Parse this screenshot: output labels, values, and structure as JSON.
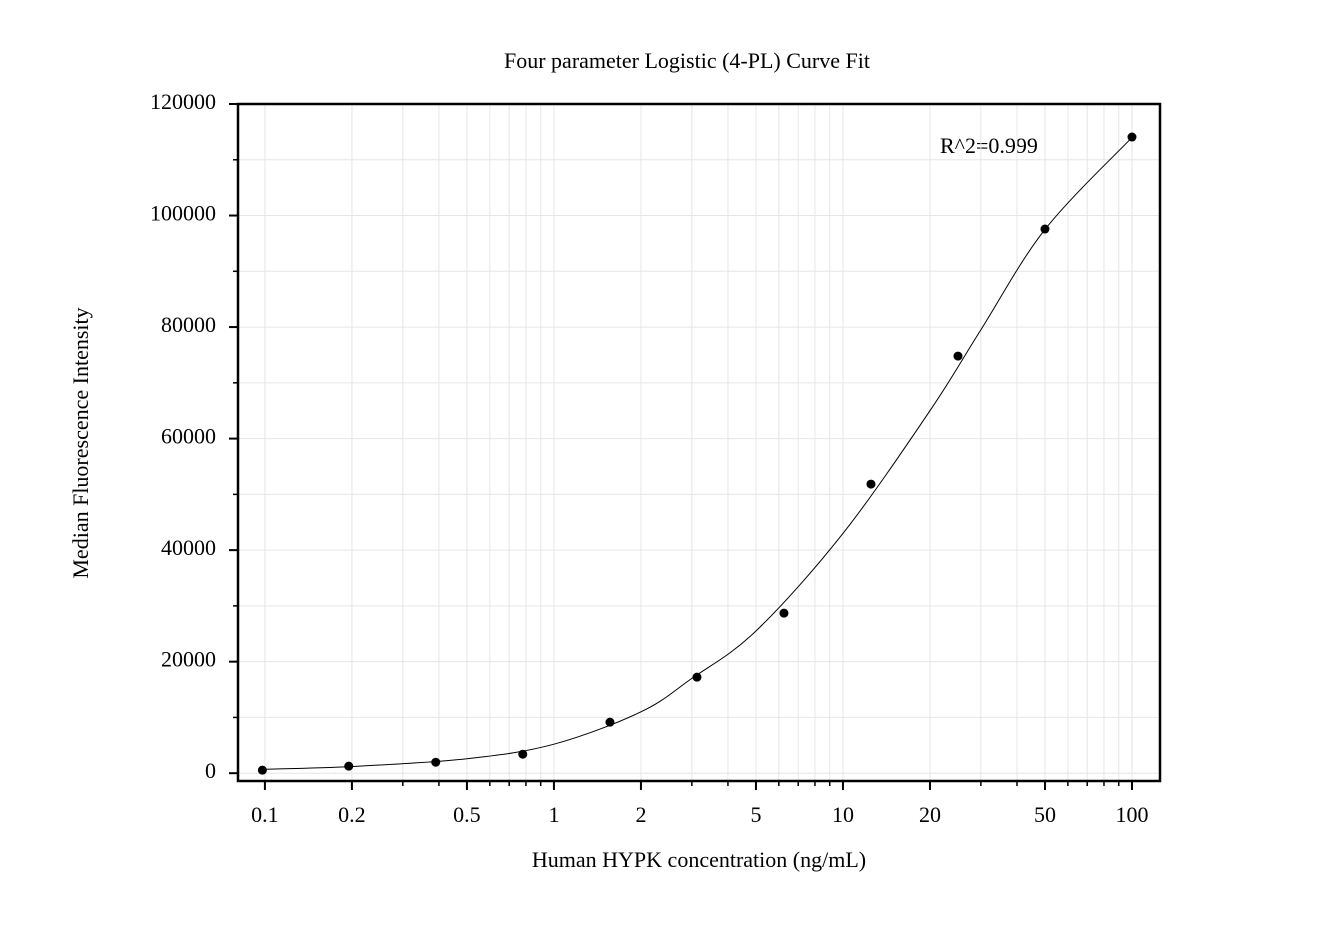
{
  "chart_data": {
    "type": "scatter",
    "title": "Four parameter Logistic (4-PL) Curve Fit",
    "x_label": "Human HYPK concentration (ng/mL)",
    "y_label": "Median Fluorescence Intensity",
    "annotation": "R^2=0.999",
    "x_scale": "log",
    "grid": true,
    "color": "#000000",
    "x": [
      0.098,
      0.195,
      0.39,
      0.78,
      1.5625,
      3.125,
      6.25,
      12.5,
      25,
      50,
      100
    ],
    "values": [
      540,
      1260,
      1970,
      3400,
      9150,
      17220,
      28700,
      51840,
      74800,
      97580,
      114080
    ],
    "curve": {
      "x": [
        0.098,
        0.2,
        0.5,
        1,
        2,
        3,
        5,
        10,
        20,
        30,
        50,
        100
      ],
      "values": [
        700,
        1200,
        2600,
        5200,
        11000,
        17000,
        25500,
        43000,
        65000,
        79500,
        97500,
        114000
      ]
    },
    "xlim": [
      0.0807,
      125
    ],
    "ylim": [
      -1400,
      120000
    ],
    "xticks": [
      0.1,
      0.2,
      0.5,
      1,
      2,
      5,
      10,
      20,
      50,
      100
    ],
    "xminorticks": [
      0.3,
      0.4,
      0.6,
      0.7,
      0.8,
      0.9,
      3,
      4,
      6,
      7,
      8,
      9,
      30,
      40,
      60,
      70,
      80,
      90
    ],
    "yticks": [
      0,
      20000,
      40000,
      60000,
      80000,
      100000,
      120000
    ],
    "yminorticks": [
      10000,
      30000,
      50000,
      70000,
      90000,
      110000
    ]
  }
}
